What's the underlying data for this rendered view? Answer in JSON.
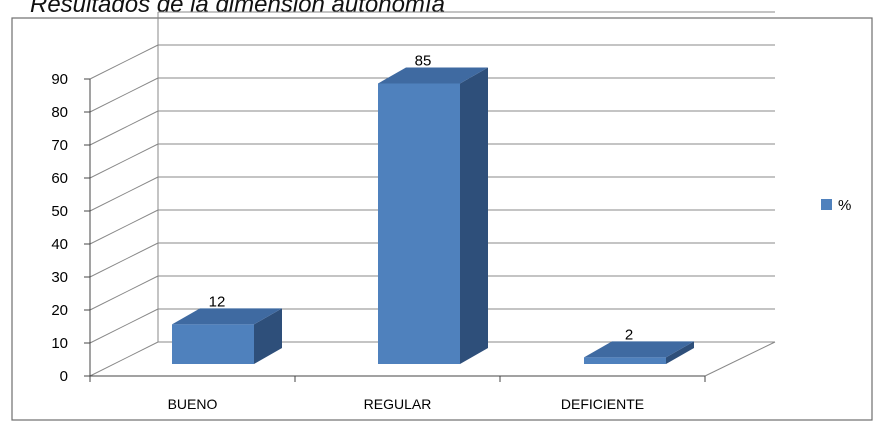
{
  "title": "Resultados de la dimensión autonomía",
  "chart_data": {
    "type": "bar",
    "three_d": true,
    "categories": [
      "BUENO",
      "REGULAR",
      "DEFICIENTE"
    ],
    "series": [
      {
        "name": "%",
        "values": [
          12,
          85,
          2
        ]
      }
    ],
    "data_labels": [
      "12",
      "85",
      "2"
    ],
    "ylim": [
      0,
      90
    ],
    "y_ticks": [
      "0",
      "10",
      "20",
      "30",
      "40",
      "50",
      "60",
      "70",
      "80",
      "90"
    ],
    "grid": true,
    "legend_position": "right",
    "colors": {
      "bar_front": "#4f81bd",
      "bar_side": "#2e4f7a",
      "bar_top": "#3f6aa1",
      "grid": "#888888",
      "border": "#6e6e6e"
    }
  }
}
